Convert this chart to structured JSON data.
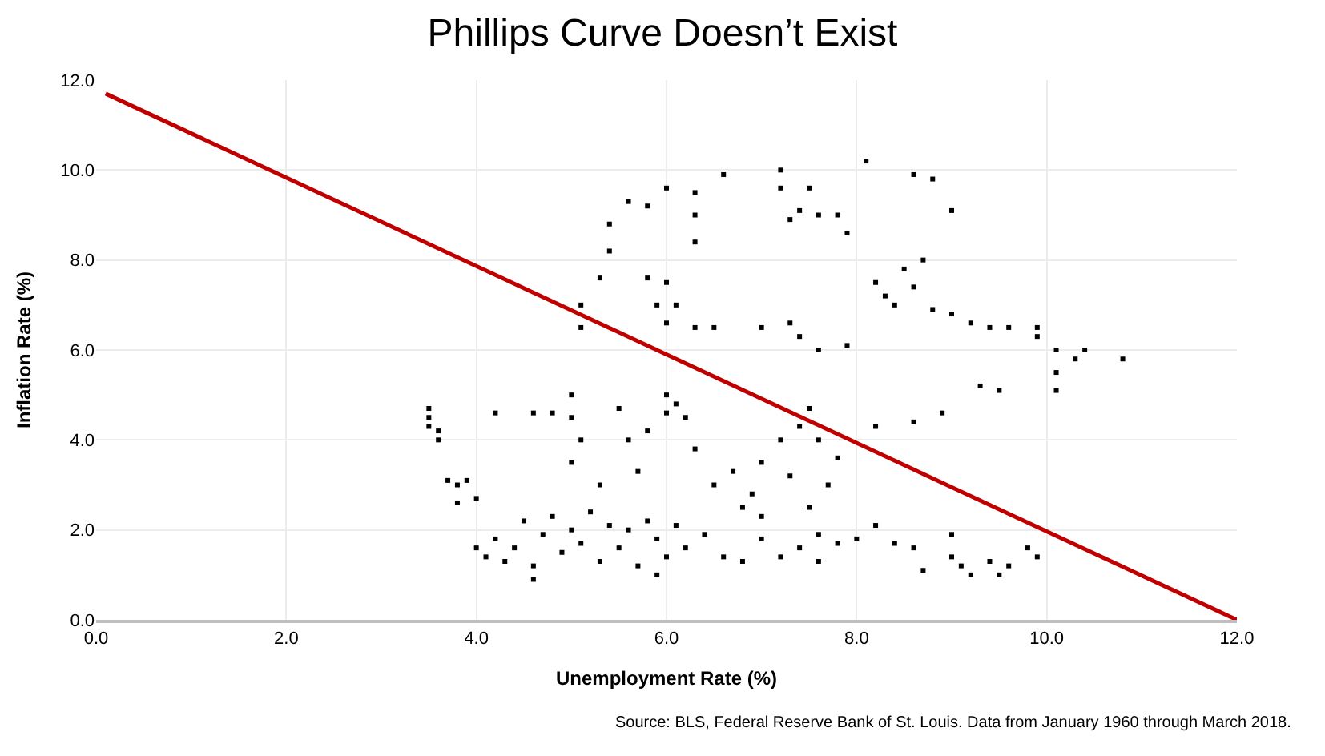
{
  "chart_data": {
    "type": "scatter",
    "title": "Phillips Curve Doesn’t Exist",
    "xlabel": "Unemployment Rate (%)",
    "ylabel": "Inflation Rate (%)",
    "annotations": [
      "Source: BLS, Federal Reserve Bank of St. Louis. Data from January 1960 through March 2018."
    ],
    "xlim": [
      0,
      12
    ],
    "ylim": [
      0,
      12
    ],
    "xticks": [
      {
        "value": 0,
        "label": "0.0"
      },
      {
        "value": 2,
        "label": "2.0"
      },
      {
        "value": 4,
        "label": "4.0"
      },
      {
        "value": 6,
        "label": "6.0"
      },
      {
        "value": 8,
        "label": "8.0"
      },
      {
        "value": 10,
        "label": "10.0"
      },
      {
        "value": 12,
        "label": "12.0"
      }
    ],
    "yticks": [
      {
        "value": 0,
        "label": "0.0"
      },
      {
        "value": 2,
        "label": "2.0"
      },
      {
        "value": 4,
        "label": "4.0"
      },
      {
        "value": 6,
        "label": "6.0"
      },
      {
        "value": 8,
        "label": "8.0"
      },
      {
        "value": 10,
        "label": "10.0"
      },
      {
        "value": 12,
        "label": "12.0"
      }
    ],
    "grid": true,
    "marker": "square",
    "series": [
      {
        "color": "#000000",
        "x": [
          3.5,
          3.5,
          3.6,
          3.6,
          3.5,
          3.7,
          3.8,
          3.9,
          3.8,
          4.0,
          5.1,
          5.1,
          5.3,
          5.4,
          5.4,
          5.6,
          5.8,
          6.0,
          6.3,
          6.3,
          6.3,
          5.8,
          5.9,
          6.0,
          6.1,
          6.0,
          6.3,
          6.5,
          6.6,
          7.2,
          7.2,
          7.5,
          7.4,
          7.6,
          7.8,
          7.3,
          7.9,
          8.1,
          8.6,
          8.8,
          9.0,
          8.7,
          8.5,
          8.2,
          8.3,
          8.4,
          8.6,
          8.8,
          9.0,
          9.2,
          9.4,
          9.6,
          9.9,
          9.9,
          10.1,
          10.3,
          10.4,
          10.8,
          10.1,
          10.1,
          9.3,
          9.5,
          8.9,
          8.6,
          8.2,
          7.0,
          7.3,
          7.6,
          7.9,
          7.4,
          5.0,
          5.0,
          5.1,
          5.0,
          5.5,
          5.6,
          5.8,
          6.0,
          6.0,
          6.1,
          6.2,
          4.6,
          4.2,
          4.8,
          5.3,
          5.7,
          6.3,
          6.5,
          6.7,
          6.9,
          7.0,
          7.2,
          7.4,
          7.5,
          7.6,
          7.3,
          7.5,
          6.8,
          7.0,
          7.7,
          7.8,
          4.0,
          4.1,
          4.2,
          4.3,
          4.4,
          4.5,
          4.6,
          4.7,
          4.8,
          4.9,
          5.0,
          5.1,
          5.2,
          5.3,
          5.4,
          5.5,
          5.6,
          5.7,
          5.8,
          5.9,
          6.0,
          6.1,
          6.2,
          6.4,
          6.6,
          6.8,
          7.0,
          7.2,
          7.4,
          7.6,
          7.8,
          8.0,
          8.2,
          8.4,
          8.6,
          8.7,
          9.0,
          9.0,
          9.1,
          9.2,
          9.4,
          9.5,
          9.6,
          9.8,
          9.9,
          4.6,
          5.9,
          7.6
        ],
        "values": [
          4.7,
          4.5,
          4.2,
          4.0,
          4.3,
          3.1,
          3.0,
          3.1,
          2.6,
          2.7,
          6.5,
          7.0,
          7.6,
          8.2,
          8.8,
          9.3,
          9.2,
          9.6,
          9.5,
          9.0,
          8.4,
          7.6,
          7.0,
          7.5,
          7.0,
          6.6,
          6.5,
          6.5,
          9.9,
          10.0,
          9.6,
          9.6,
          9.1,
          9.0,
          9.0,
          8.9,
          8.6,
          10.2,
          9.9,
          9.8,
          9.1,
          8.0,
          7.8,
          7.5,
          7.2,
          7.0,
          7.4,
          6.9,
          6.8,
          6.6,
          6.5,
          6.5,
          6.5,
          6.3,
          6.0,
          5.8,
          6.0,
          5.8,
          5.1,
          5.5,
          5.2,
          5.1,
          4.6,
          4.4,
          4.3,
          6.5,
          6.6,
          6.0,
          6.1,
          6.3,
          5.0,
          4.5,
          4.0,
          3.5,
          4.7,
          4.0,
          4.2,
          4.6,
          5.0,
          4.8,
          4.5,
          4.6,
          4.6,
          4.6,
          3.0,
          3.3,
          3.8,
          3.0,
          3.3,
          2.8,
          3.5,
          4.0,
          4.3,
          4.7,
          4.0,
          3.2,
          2.5,
          2.5,
          2.3,
          3.0,
          3.6,
          1.6,
          1.4,
          1.8,
          1.3,
          1.6,
          2.2,
          1.2,
          1.9,
          2.3,
          1.5,
          2.0,
          1.7,
          2.4,
          1.3,
          2.1,
          1.6,
          2.0,
          1.2,
          2.2,
          1.8,
          1.4,
          2.1,
          1.6,
          1.9,
          1.4,
          1.3,
          1.8,
          1.4,
          1.6,
          1.9,
          1.7,
          1.8,
          2.1,
          1.7,
          1.6,
          1.1,
          1.9,
          1.4,
          1.2,
          1.0,
          1.3,
          1.0,
          1.2,
          1.6,
          1.4,
          0.9,
          1.0,
          1.3
        ]
      },
      {
        "type": "line",
        "color": "#c00000",
        "marker": "none",
        "x": [
          0.1,
          12
        ],
        "values": [
          11.7,
          0
        ]
      }
    ]
  }
}
